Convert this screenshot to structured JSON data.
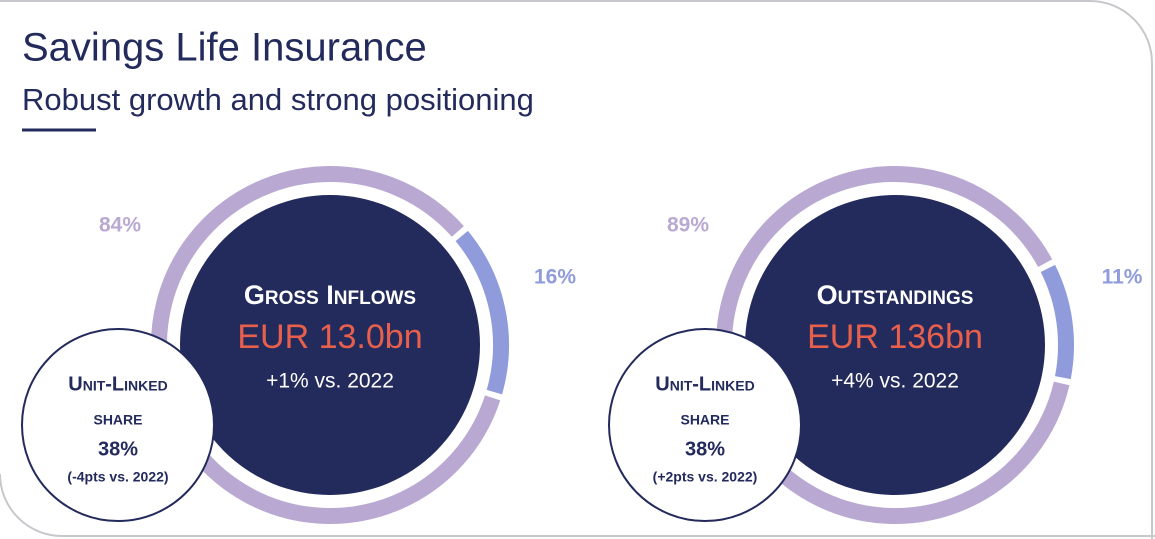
{
  "header": {
    "title": "Savings Life Insurance",
    "subtitle": "Robust growth and strong positioning"
  },
  "chart_data": [
    {
      "type": "donut",
      "title": "Gross Inflows",
      "amount": "EUR 13.0bn",
      "change": "+1% vs. 2022",
      "values": [
        84,
        16
      ],
      "value_labels": [
        "84%",
        "16%"
      ],
      "colors": [
        "#b9a9d2",
        "#8f9bdb"
      ],
      "inset": {
        "title": "Unit-Linked",
        "subtitle": "share",
        "value": "38%",
        "note": "(-4pts vs. 2022)"
      }
    },
    {
      "type": "donut",
      "title": "Outstandings",
      "amount": "EUR 136bn",
      "change": "+4% vs. 2022",
      "values": [
        89,
        11
      ],
      "value_labels": [
        "89%",
        "11%"
      ],
      "colors": [
        "#b9a9d2",
        "#8f9bdb"
      ],
      "inset": {
        "title": "Unit-Linked",
        "subtitle": "share",
        "value": "38%",
        "note": "(+2pts vs. 2022)"
      }
    }
  ]
}
